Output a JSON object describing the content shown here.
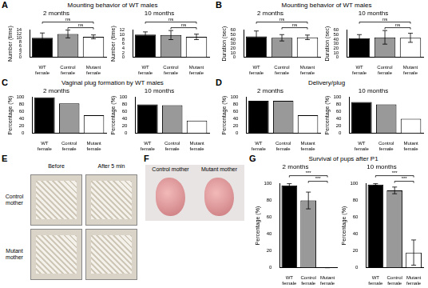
{
  "panels": [
    {
      "letter": "A",
      "title": "Mounting behavior of WT males"
    },
    {
      "letter": "B",
      "title": "Mounting behavior of WT males"
    },
    {
      "letter": "C",
      "title": "Vaginal plug formation by WT males"
    },
    {
      "letter": "D",
      "title": "Delivery/plug"
    },
    {
      "letter": "E",
      "columns": [
        "Before",
        "After 5 min"
      ],
      "rows": [
        "Control mother",
        "Mutant mother"
      ]
    },
    {
      "letter": "F",
      "labels": [
        "Control mother",
        "Mutant mother"
      ]
    },
    {
      "letter": "G",
      "title": "Survival of pups after P1"
    }
  ],
  "chart_data": [
    {
      "panel": "A",
      "type": "bar",
      "title": "2 months",
      "y_label": "Number (time)",
      "categories": [
        "WT female",
        "Control female",
        "Mutant female"
      ],
      "values": [
        10,
        12,
        10.5
      ],
      "errors": [
        2.5,
        2,
        1
      ],
      "colors": [
        "#000000",
        "#999999",
        "#ffffff"
      ],
      "ylim": [
        0,
        14
      ],
      "yticks": [
        0,
        2,
        4,
        6,
        8,
        10,
        12,
        14
      ],
      "grid": false,
      "annotations": [
        {
          "text": "ns",
          "from": "WT female",
          "to": "Mutant female"
        },
        {
          "text": "ns",
          "from": "Control female",
          "to": "Mutant female"
        }
      ]
    },
    {
      "panel": "A",
      "type": "bar",
      "title": "10 months",
      "y_label": "Number (time)",
      "categories": [
        "WT female",
        "Control female",
        "Mutant female"
      ],
      "values": [
        10,
        9.8,
        9
      ],
      "errors": [
        1.2,
        2,
        1.2
      ],
      "colors": [
        "#000000",
        "#999999",
        "#ffffff"
      ],
      "ylim": [
        0,
        12
      ],
      "yticks": [
        0,
        2,
        4,
        6,
        8,
        10,
        12
      ],
      "grid": false,
      "annotations": [
        {
          "text": "ns",
          "from": "WT female",
          "to": "Mutant female"
        },
        {
          "text": "ns",
          "from": "Control female",
          "to": "Mutant female"
        }
      ]
    },
    {
      "panel": "B",
      "type": "bar",
      "title": "2 months",
      "y_label": "Duration (sec)",
      "categories": [
        "WT female",
        "Control female",
        "Mutant female"
      ],
      "values": [
        46,
        43,
        44
      ],
      "errors": [
        12,
        7,
        5
      ],
      "colors": [
        "#000000",
        "#999999",
        "#ffffff"
      ],
      "ylim": [
        0,
        60
      ],
      "yticks": [
        0,
        10,
        20,
        30,
        40,
        50,
        60
      ],
      "grid": false,
      "annotations": [
        {
          "text": "ns",
          "from": "WT female",
          "to": "Mutant female"
        },
        {
          "text": "ns",
          "from": "Control female",
          "to": "Mutant female"
        }
      ]
    },
    {
      "panel": "B",
      "type": "bar",
      "title": "10 months",
      "y_label": "Duration (sec)",
      "categories": [
        "WT female",
        "Control female",
        "Mutant female"
      ],
      "values": [
        42,
        44,
        43
      ],
      "errors": [
        8,
        15,
        10
      ],
      "colors": [
        "#000000",
        "#999999",
        "#ffffff"
      ],
      "ylim": [
        0,
        60
      ],
      "yticks": [
        0,
        10,
        20,
        30,
        40,
        50,
        60
      ],
      "grid": false,
      "annotations": [
        {
          "text": "ns",
          "from": "WT female",
          "to": "Mutant female"
        },
        {
          "text": "ns",
          "from": "Control female",
          "to": "Mutant female"
        }
      ]
    },
    {
      "panel": "C",
      "type": "bar",
      "title": "2 months",
      "y_label": "Percentage (%)",
      "categories": [
        "WT female",
        "Control female",
        "Mutant female"
      ],
      "values": [
        100,
        83,
        50
      ],
      "colors": [
        "#000000",
        "#999999",
        "#ffffff"
      ],
      "ylim": [
        0,
        100
      ],
      "yticks": [
        0,
        20,
        40,
        60,
        80,
        100
      ],
      "grid": false
    },
    {
      "panel": "C",
      "type": "bar",
      "title": "10 months",
      "y_label": "Percentage (%)",
      "categories": [
        "WT female",
        "Control female",
        "Mutant female"
      ],
      "values": [
        80,
        78,
        35
      ],
      "colors": [
        "#000000",
        "#999999",
        "#ffffff"
      ],
      "ylim": [
        0,
        100
      ],
      "yticks": [
        0,
        20,
        40,
        60,
        80,
        100
      ],
      "grid": false
    },
    {
      "panel": "D",
      "type": "bar",
      "title": "2 months",
      "y_label": "Percentage (%)",
      "categories": [
        "WT female",
        "Control female",
        "Mutant female"
      ],
      "values": [
        90,
        90,
        50
      ],
      "colors": [
        "#000000",
        "#999999",
        "#ffffff"
      ],
      "ylim": [
        0,
        100
      ],
      "yticks": [
        0,
        20,
        40,
        60,
        80,
        100
      ],
      "grid": false
    },
    {
      "panel": "D",
      "type": "bar",
      "title": "10 months",
      "y_label": "Percentage (%)",
      "categories": [
        "WT female",
        "Control female",
        "Mutant female"
      ],
      "values": [
        87,
        80,
        40
      ],
      "colors": [
        "#000000",
        "#999999",
        "#ffffff"
      ],
      "ylim": [
        0,
        100
      ],
      "yticks": [
        0,
        20,
        40,
        60,
        80,
        100
      ],
      "grid": false
    },
    {
      "panel": "G",
      "type": "bar",
      "title": "2 months",
      "y_label": "Percentage (%)",
      "categories": [
        "WT female",
        "Control female",
        "Mutant female"
      ],
      "values": [
        98,
        80,
        0
      ],
      "errors": [
        2,
        10,
        0
      ],
      "colors": [
        "#000000",
        "#999999",
        "#ffffff"
      ],
      "ylim": [
        0,
        100
      ],
      "yticks": [
        0,
        20,
        40,
        60,
        80,
        100
      ],
      "grid": false,
      "annotations": [
        {
          "text": "***",
          "from": "WT female",
          "to": "Mutant female"
        },
        {
          "text": "***",
          "from": "Control female",
          "to": "Mutant female"
        }
      ]
    },
    {
      "panel": "G",
      "type": "bar",
      "title": "10 months",
      "y_label": "Percentage (%)",
      "categories": [
        "WT female",
        "Control female",
        "Mutant female"
      ],
      "values": [
        99,
        92,
        18
      ],
      "errors": [
        1,
        4,
        15
      ],
      "colors": [
        "#000000",
        "#999999",
        "#ffffff"
      ],
      "ylim": [
        0,
        100
      ],
      "yticks": [
        0,
        20,
        40,
        60,
        80,
        100
      ],
      "grid": false,
      "annotations": [
        {
          "text": "***",
          "from": "WT female",
          "to": "Mutant female"
        },
        {
          "text": "***",
          "from": "Control female",
          "to": "Mutant female"
        }
      ]
    }
  ]
}
